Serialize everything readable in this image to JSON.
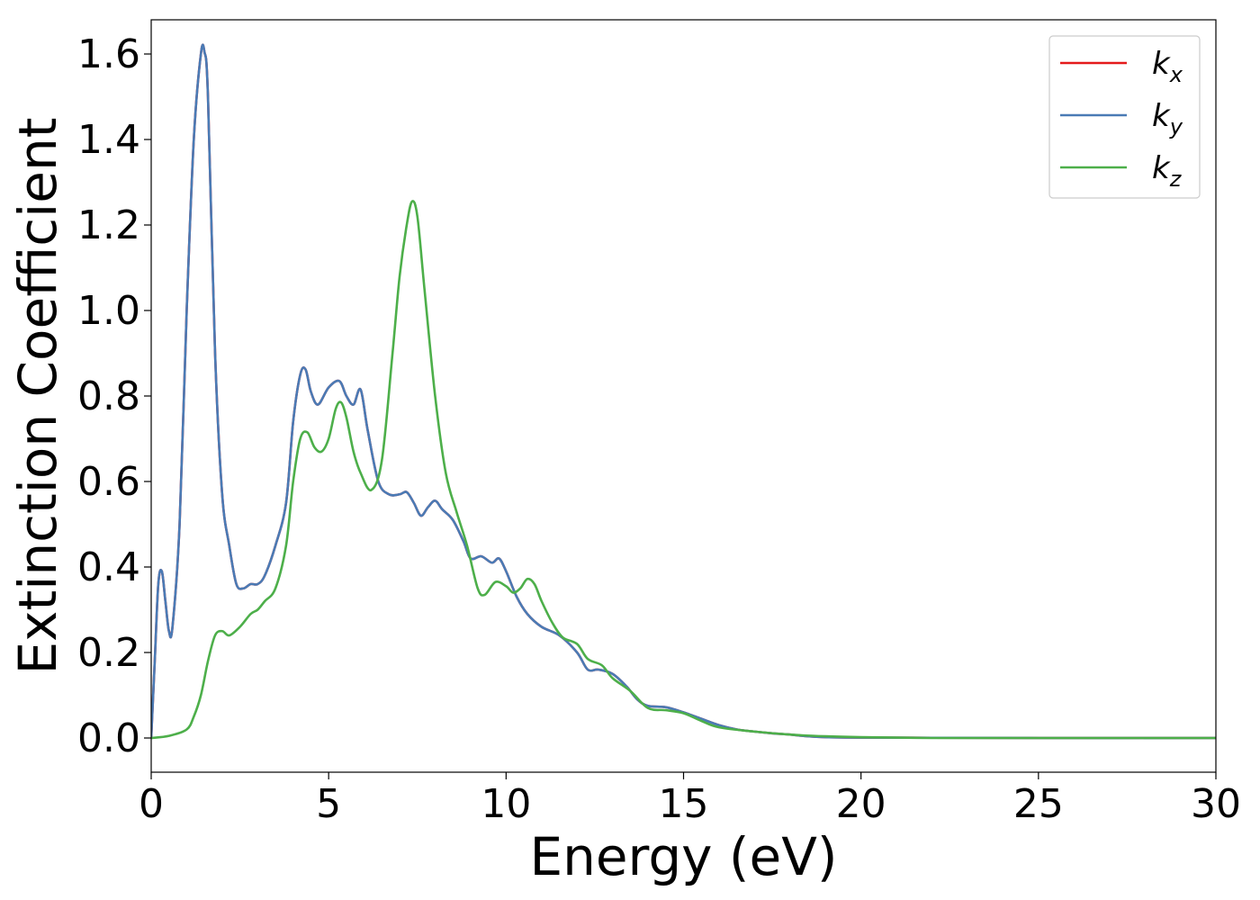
{
  "chart_data": {
    "type": "line",
    "xlabel": "Energy (eV)",
    "ylabel": "Extinction Coefficient",
    "xlim": [
      0,
      30
    ],
    "ylim": [
      -0.08,
      1.68
    ],
    "xticks": [
      0,
      5,
      10,
      15,
      20,
      25,
      30
    ],
    "xtick_labels": [
      "0",
      "5",
      "10",
      "15",
      "20",
      "25",
      "30"
    ],
    "yticks": [
      0.0,
      0.2,
      0.4,
      0.6,
      0.8,
      1.0,
      1.2,
      1.4,
      1.6
    ],
    "ytick_labels": [
      "0.0",
      "0.2",
      "0.4",
      "0.6",
      "0.8",
      "1.0",
      "1.2",
      "1.4",
      "1.6"
    ],
    "grid": false,
    "legend_position": "top-right",
    "series": [
      {
        "name": "k_x",
        "label_main": "k",
        "label_sub": "x",
        "color": "#e41a1c",
        "x": [
          0,
          0.1,
          0.2,
          0.3,
          0.4,
          0.5,
          0.6,
          0.8,
          1.0,
          1.2,
          1.4,
          1.5,
          1.6,
          1.8,
          2.0,
          2.2,
          2.4,
          2.6,
          2.8,
          3.0,
          3.2,
          3.5,
          3.8,
          4.0,
          4.2,
          4.35,
          4.5,
          4.7,
          5.0,
          5.3,
          5.5,
          5.7,
          5.9,
          6.1,
          6.4,
          6.7,
          7.0,
          7.2,
          7.4,
          7.6,
          7.8,
          8.0,
          8.2,
          8.5,
          8.8,
          9.0,
          9.3,
          9.6,
          9.8,
          10.0,
          10.3,
          10.6,
          11.0,
          11.5,
          12.0,
          12.3,
          12.6,
          13.0,
          13.4,
          13.7,
          14.0,
          14.5,
          15.0,
          15.5,
          16.0,
          16.5,
          17.0,
          17.5,
          18.0,
          18.5,
          19.0,
          20.0,
          22.0,
          25.0,
          30.0
        ],
        "y": [
          0.0,
          0.18,
          0.36,
          0.39,
          0.32,
          0.25,
          0.26,
          0.5,
          1.0,
          1.4,
          1.6,
          1.605,
          1.5,
          0.9,
          0.57,
          0.45,
          0.36,
          0.35,
          0.36,
          0.36,
          0.38,
          0.45,
          0.55,
          0.74,
          0.85,
          0.862,
          0.81,
          0.78,
          0.82,
          0.835,
          0.8,
          0.78,
          0.815,
          0.72,
          0.6,
          0.57,
          0.57,
          0.575,
          0.55,
          0.52,
          0.54,
          0.555,
          0.535,
          0.51,
          0.46,
          0.42,
          0.425,
          0.41,
          0.42,
          0.39,
          0.33,
          0.29,
          0.26,
          0.24,
          0.2,
          0.16,
          0.16,
          0.15,
          0.12,
          0.09,
          0.075,
          0.072,
          0.06,
          0.045,
          0.03,
          0.02,
          0.015,
          0.011,
          0.008,
          0.004,
          0.002,
          0.001,
          0.0005,
          0.0,
          0.0
        ]
      },
      {
        "name": "k_y",
        "label_main": "k",
        "label_sub": "y",
        "color": "#4a7bb5",
        "x": [
          0,
          0.1,
          0.2,
          0.3,
          0.4,
          0.5,
          0.6,
          0.8,
          1.0,
          1.2,
          1.4,
          1.5,
          1.6,
          1.8,
          2.0,
          2.2,
          2.4,
          2.6,
          2.8,
          3.0,
          3.2,
          3.5,
          3.8,
          4.0,
          4.2,
          4.35,
          4.5,
          4.7,
          5.0,
          5.3,
          5.5,
          5.7,
          5.9,
          6.1,
          6.4,
          6.7,
          7.0,
          7.2,
          7.4,
          7.6,
          7.8,
          8.0,
          8.2,
          8.5,
          8.8,
          9.0,
          9.3,
          9.6,
          9.8,
          10.0,
          10.3,
          10.6,
          11.0,
          11.5,
          12.0,
          12.3,
          12.6,
          13.0,
          13.4,
          13.7,
          14.0,
          14.5,
          15.0,
          15.5,
          16.0,
          16.5,
          17.0,
          17.5,
          18.0,
          18.5,
          19.0,
          20.0,
          22.0,
          25.0,
          30.0
        ],
        "y": [
          0.0,
          0.18,
          0.36,
          0.39,
          0.32,
          0.25,
          0.26,
          0.5,
          1.0,
          1.4,
          1.6,
          1.605,
          1.5,
          0.9,
          0.57,
          0.45,
          0.36,
          0.35,
          0.36,
          0.36,
          0.38,
          0.45,
          0.55,
          0.74,
          0.85,
          0.862,
          0.81,
          0.78,
          0.82,
          0.835,
          0.8,
          0.78,
          0.815,
          0.72,
          0.6,
          0.57,
          0.57,
          0.575,
          0.55,
          0.52,
          0.54,
          0.555,
          0.535,
          0.51,
          0.46,
          0.42,
          0.425,
          0.41,
          0.42,
          0.39,
          0.33,
          0.29,
          0.26,
          0.24,
          0.2,
          0.16,
          0.16,
          0.15,
          0.12,
          0.09,
          0.075,
          0.072,
          0.06,
          0.045,
          0.03,
          0.02,
          0.015,
          0.011,
          0.008,
          0.004,
          0.002,
          0.001,
          0.0005,
          0.0,
          0.0
        ]
      },
      {
        "name": "k_z",
        "label_main": "k",
        "label_sub": "z",
        "color": "#4daf4a",
        "x": [
          0,
          0.5,
          1.0,
          1.2,
          1.4,
          1.6,
          1.8,
          2.0,
          2.2,
          2.5,
          2.8,
          3.0,
          3.2,
          3.5,
          3.8,
          4.0,
          4.2,
          4.4,
          4.6,
          4.8,
          5.0,
          5.2,
          5.35,
          5.5,
          5.7,
          5.9,
          6.2,
          6.5,
          6.8,
          7.0,
          7.2,
          7.35,
          7.5,
          7.7,
          8.0,
          8.3,
          8.6,
          8.9,
          9.2,
          9.4,
          9.7,
          10.0,
          10.2,
          10.4,
          10.6,
          10.8,
          11.0,
          11.3,
          11.6,
          12.0,
          12.3,
          12.7,
          13.0,
          13.5,
          14.0,
          14.5,
          15.0,
          15.5,
          16.0,
          17.0,
          18.0,
          19.0,
          20.0,
          22.0,
          25.0,
          30.0
        ],
        "y": [
          0.0,
          0.005,
          0.02,
          0.05,
          0.1,
          0.18,
          0.24,
          0.25,
          0.24,
          0.26,
          0.29,
          0.3,
          0.32,
          0.35,
          0.45,
          0.6,
          0.7,
          0.715,
          0.68,
          0.67,
          0.7,
          0.77,
          0.785,
          0.75,
          0.67,
          0.62,
          0.58,
          0.65,
          0.9,
          1.08,
          1.2,
          1.255,
          1.22,
          1.05,
          0.8,
          0.62,
          0.53,
          0.45,
          0.35,
          0.335,
          0.365,
          0.355,
          0.34,
          0.35,
          0.372,
          0.36,
          0.32,
          0.27,
          0.235,
          0.22,
          0.185,
          0.17,
          0.14,
          0.11,
          0.07,
          0.065,
          0.058,
          0.04,
          0.025,
          0.015,
          0.008,
          0.004,
          0.002,
          0.0,
          0.0,
          0.0
        ]
      }
    ]
  }
}
